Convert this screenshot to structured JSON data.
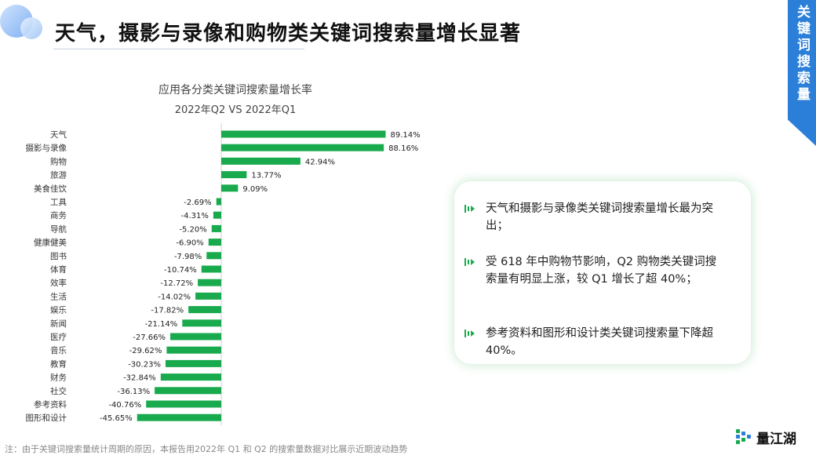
{
  "header": {
    "title": "天气，摄影与录像和购物类关键词搜索量增长显著"
  },
  "side_banner": {
    "label": "关键词搜索量",
    "color": "#2b7fd8"
  },
  "chart_data": {
    "type": "bar",
    "orientation": "horizontal",
    "title": "应用各分类关键词搜索量增长率",
    "subtitle": "2022年Q2 VS 2022年Q1",
    "bar_color": "#1aaa4e",
    "categories": [
      "天气",
      "摄影与录像",
      "购物",
      "旅游",
      "美食佳饮",
      "工具",
      "商务",
      "导航",
      "健康健美",
      "图书",
      "体育",
      "效率",
      "生活",
      "娱乐",
      "新闻",
      "医疗",
      "音乐",
      "教育",
      "财务",
      "社交",
      "参考资料",
      "图形和设计"
    ],
    "values": [
      89.14,
      88.16,
      42.94,
      13.77,
      9.09,
      -2.69,
      -4.31,
      -5.2,
      -6.9,
      -7.98,
      -10.74,
      -12.72,
      -14.02,
      -17.82,
      -21.14,
      -27.66,
      -29.62,
      -30.23,
      -32.84,
      -36.13,
      -40.76,
      -45.65
    ],
    "value_labels": [
      "89.14%",
      "88.16%",
      "42.94%",
      "13.77%",
      "9.09%",
      "-2.69%",
      "-4.31%",
      "-5.20%",
      "-6.90%",
      "-7.98%",
      "-10.74%",
      "-12.72%",
      "-14.02%",
      "-17.82%",
      "-21.14%",
      "-27.66%",
      "-29.62%",
      "-30.23%",
      "-32.84%",
      "-36.13%",
      "-40.76%",
      "-45.65%"
    ]
  },
  "callout": {
    "bullets": [
      {
        "text": "天气和摄影与录像类关键词搜索量增长最为突出；"
      },
      {
        "text": "受 618 年中购物节影响，Q2 购物类关键词搜索量有明显上涨，较 Q1 增长了超 40%；"
      },
      {
        "text": "参考资料和图形和设计类关键词搜索量下降超 40%。"
      }
    ],
    "accent_color": "#1aaa4e"
  },
  "footer": {
    "note": "注：由于关键词搜索量统计周期的原因，本报告用2022年 Q1 和 Q2 的搜索量数据对比展示近期波动趋势",
    "logo_text": "量江湖",
    "logo_icon": "liangjianghu-logo-icon"
  }
}
